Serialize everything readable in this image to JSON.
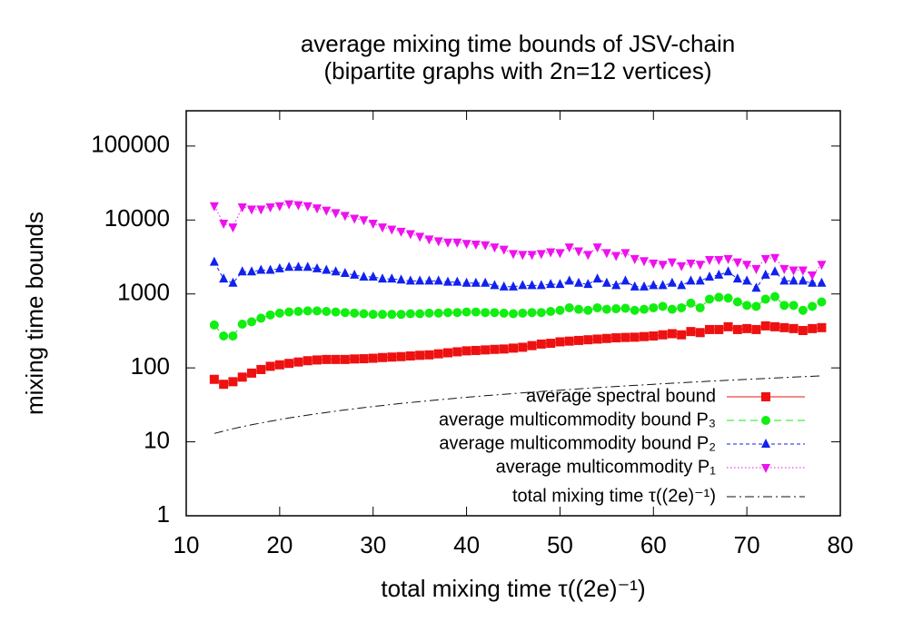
{
  "chart_data": {
    "type": "line",
    "title": "average mixing time bounds of JSV-chain",
    "subtitle": "(bipartite graphs with 2n=12 vertices)",
    "x_label": "total mixing time τ((2e)⁻¹)",
    "y_label": "mixing time bounds",
    "log_y": true,
    "legend": "lower right",
    "xlim": [
      10,
      80
    ],
    "xticks": [
      10,
      20,
      30,
      40,
      50,
      60,
      70,
      80
    ],
    "ylim": [
      1,
      300000
    ],
    "yticks": [
      1,
      10,
      100,
      1000,
      10000,
      100000
    ],
    "x": [
      13,
      14,
      15,
      16,
      17,
      18,
      19,
      20,
      21,
      22,
      23,
      24,
      25,
      26,
      27,
      28,
      29,
      30,
      31,
      32,
      33,
      34,
      35,
      36,
      37,
      38,
      39,
      40,
      41,
      42,
      43,
      44,
      45,
      46,
      47,
      48,
      49,
      50,
      51,
      52,
      53,
      54,
      55,
      56,
      57,
      58,
      59,
      60,
      61,
      62,
      63,
      64,
      65,
      66,
      67,
      68,
      69,
      70,
      71,
      72,
      73,
      74,
      75,
      76,
      77,
      78
    ],
    "series": [
      {
        "name": "average spectral bound",
        "color": "#ee1111",
        "marker": "square",
        "line_style": "solid",
        "values": [
          70,
          60,
          65,
          75,
          85,
          95,
          105,
          110,
          115,
          120,
          125,
          128,
          130,
          130,
          130,
          132,
          133,
          135,
          138,
          140,
          142,
          145,
          148,
          150,
          155,
          160,
          165,
          170,
          172,
          175,
          178,
          180,
          185,
          190,
          200,
          210,
          215,
          225,
          230,
          235,
          240,
          245,
          250,
          255,
          258,
          260,
          265,
          270,
          280,
          290,
          280,
          310,
          300,
          330,
          330,
          360,
          330,
          340,
          330,
          370,
          360,
          350,
          340,
          320,
          340,
          350
        ]
      },
      {
        "name": "average multicommodity bound P₃",
        "color": "#11ee11",
        "marker": "circle",
        "line_style": "dashed",
        "values": [
          380,
          270,
          270,
          390,
          420,
          470,
          520,
          550,
          570,
          580,
          590,
          590,
          580,
          570,
          560,
          550,
          540,
          530,
          530,
          530,
          530,
          540,
          540,
          550,
          550,
          560,
          560,
          570,
          570,
          560,
          560,
          550,
          540,
          550,
          560,
          560,
          580,
          600,
          650,
          620,
          600,
          650,
          620,
          630,
          640,
          600,
          620,
          650,
          680,
          620,
          650,
          750,
          650,
          850,
          900,
          880,
          780,
          700,
          680,
          850,
          920,
          700,
          700,
          600,
          680,
          780
        ]
      },
      {
        "name": "average multicommodity bound P₂",
        "color": "#1122ee",
        "marker": "triangle-up",
        "line_style": "short-dashed",
        "values": [
          2700,
          1600,
          1400,
          2000,
          2000,
          2100,
          2100,
          2200,
          2300,
          2300,
          2300,
          2200,
          2100,
          2000,
          1900,
          1800,
          1700,
          1700,
          1600,
          1600,
          1550,
          1500,
          1500,
          1500,
          1500,
          1450,
          1450,
          1400,
          1400,
          1400,
          1300,
          1250,
          1250,
          1300,
          1300,
          1300,
          1350,
          1350,
          1500,
          1400,
          1350,
          1600,
          1400,
          1300,
          1500,
          1250,
          1250,
          1300,
          1300,
          1400,
          1300,
          1500,
          1500,
          1700,
          1800,
          2000,
          1600,
          1500,
          1200,
          1800,
          2000,
          1500,
          1500,
          1500,
          1400,
          1400
        ]
      },
      {
        "name": "average multicommodity P₁",
        "color": "#ee11ee",
        "marker": "triangle-down",
        "line_style": "dotted",
        "values": [
          15500,
          9000,
          8000,
          15000,
          14000,
          14000,
          15000,
          15500,
          16500,
          16000,
          15500,
          14500,
          13500,
          12500,
          11500,
          10500,
          10000,
          9000,
          8000,
          7500,
          7000,
          6500,
          6000,
          5500,
          5200,
          5000,
          5000,
          4800,
          4700,
          4600,
          4300,
          4000,
          3500,
          3400,
          3400,
          3500,
          3700,
          3600,
          4300,
          3800,
          3400,
          4300,
          3600,
          3300,
          3600,
          3000,
          2800,
          2600,
          2500,
          2700,
          2400,
          2600,
          2500,
          2900,
          2900,
          3000,
          2700,
          2500,
          2200,
          3000,
          3100,
          2200,
          2100,
          2100,
          1800,
          2500
        ]
      },
      {
        "name": "total mixing time τ((2e)⁻¹)",
        "color": "#111111",
        "marker": "none",
        "line_style": "dash-dot",
        "values": [
          13,
          14,
          15,
          16,
          17,
          18,
          19,
          20,
          21,
          22,
          23,
          24,
          25,
          26,
          27,
          28,
          29,
          30,
          31,
          32,
          33,
          34,
          35,
          36,
          37,
          38,
          39,
          40,
          41,
          42,
          43,
          44,
          45,
          46,
          47,
          48,
          49,
          50,
          51,
          52,
          53,
          54,
          55,
          56,
          57,
          58,
          59,
          60,
          61,
          62,
          63,
          64,
          65,
          66,
          67,
          68,
          69,
          70,
          71,
          72,
          73,
          74,
          75,
          76,
          77,
          78
        ]
      }
    ]
  }
}
